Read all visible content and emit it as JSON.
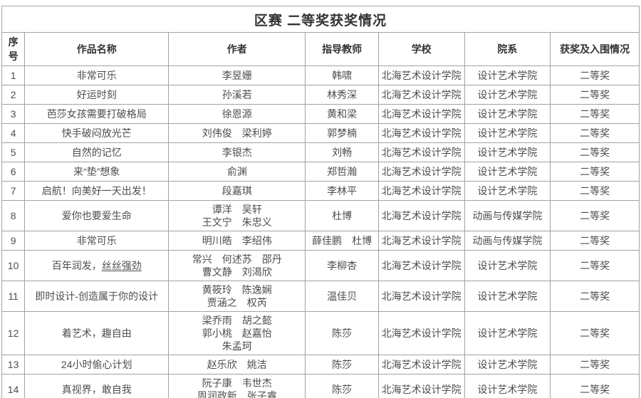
{
  "table": {
    "title": "区赛 二等奖获奖情况",
    "headers": [
      "序号",
      "作品名称",
      "作者",
      "指导教师",
      "学校",
      "院系",
      "获奖及入围情况"
    ],
    "rows": [
      {
        "no": "1",
        "work": "非常可乐",
        "authors": [
          "李昱姗"
        ],
        "teachers": [
          "韩啸"
        ],
        "school": "北海艺术设计学院",
        "dept": "设计艺术学院",
        "award": "二等奖"
      },
      {
        "no": "2",
        "work": "好运时刻",
        "authors": [
          "孙溪若"
        ],
        "teachers": [
          "林秀深"
        ],
        "school": "北海艺术设计学院",
        "dept": "设计艺术学院",
        "award": "二等奖"
      },
      {
        "no": "3",
        "work": "芭莎女孩需要打破格局",
        "authors": [
          "徐恩源"
        ],
        "teachers": [
          "黄和梁"
        ],
        "school": "北海艺术设计学院",
        "dept": "设计艺术学院",
        "award": "二等奖"
      },
      {
        "no": "4",
        "work": "快手破闷放光芒",
        "authors": [
          "刘伟俊　梁利婷"
        ],
        "teachers": [
          "郭梦楠"
        ],
        "school": "北海艺术设计学院",
        "dept": "设计艺术学院",
        "award": "二等奖"
      },
      {
        "no": "5",
        "work": "自然的记忆",
        "authors": [
          "李银杰"
        ],
        "teachers": [
          "刘畅"
        ],
        "school": "北海艺术设计学院",
        "dept": "设计艺术学院",
        "award": "二等奖"
      },
      {
        "no": "6",
        "work": "来“垫”想象",
        "authors": [
          "俞渊"
        ],
        "teachers": [
          "郑哲瀚"
        ],
        "school": "北海艺术设计学院",
        "dept": "设计艺术学院",
        "award": "二等奖"
      },
      {
        "no": "7",
        "work": "启航！向美好一天出发！",
        "authors": [
          "段嘉琪"
        ],
        "teachers": [
          "李林平"
        ],
        "school": "北海艺术设计学院",
        "dept": "设计艺术学院",
        "award": "二等奖"
      },
      {
        "no": "8",
        "work": "爱你也要爱生命",
        "authors": [
          "谭洋　吴轩",
          "王文宁　朱忠义"
        ],
        "teachers": [
          "杜博"
        ],
        "school": "北海艺术设计学院",
        "dept": "动画与传媒学院",
        "award": "二等奖"
      },
      {
        "no": "9",
        "work": "非常可乐",
        "authors": [
          "明川皓　李绍伟"
        ],
        "teachers": [
          "薛佳鹏　杜博"
        ],
        "school": "北海艺术设计学院",
        "dept": "动画与传媒学院",
        "award": "二等奖"
      },
      {
        "no": "10",
        "work": "百年润发，丝丝强劲",
        "work_underline": "丝丝强劲",
        "authors": [
          "常兴　何述苏　邵丹",
          "曹文静　刘渴欣"
        ],
        "teachers": [
          "李柳杏"
        ],
        "school": "北海艺术设计学院",
        "dept": "设计艺术学院",
        "award": "二等奖"
      },
      {
        "no": "11",
        "work": "即时设计-创造属于你的设计",
        "authors": [
          "黄筱玲　陈逸娴",
          "贾涵之　权芮"
        ],
        "teachers": [
          "温佳贝"
        ],
        "school": "北海艺术设计学院",
        "dept": "设计艺术学院",
        "award": "二等奖"
      },
      {
        "no": "12",
        "work": "着艺术，趣自由",
        "authors": [
          "梁乔雨　胡之懿",
          "郭小桃　赵嘉怡",
          "朱孟珂"
        ],
        "teachers": [
          "陈莎"
        ],
        "school": "北海艺术设计学院",
        "dept": "设计艺术学院",
        "award": "二等奖"
      },
      {
        "no": "13",
        "work": "24小时偷心计划",
        "authors": [
          "赵乐欣　姚洁"
        ],
        "teachers": [
          "陈莎"
        ],
        "school": "北海艺术设计学院",
        "dept": "设计艺术学院",
        "award": "二等奖"
      },
      {
        "no": "14",
        "work": "真视界，敢自我",
        "authors": [
          "阮子康　韦世杰",
          "周润政新　张子睿"
        ],
        "teachers": [
          "陈莎"
        ],
        "school": "北海艺术设计学院",
        "dept": "设计艺术学院",
        "award": "二等奖"
      }
    ]
  }
}
